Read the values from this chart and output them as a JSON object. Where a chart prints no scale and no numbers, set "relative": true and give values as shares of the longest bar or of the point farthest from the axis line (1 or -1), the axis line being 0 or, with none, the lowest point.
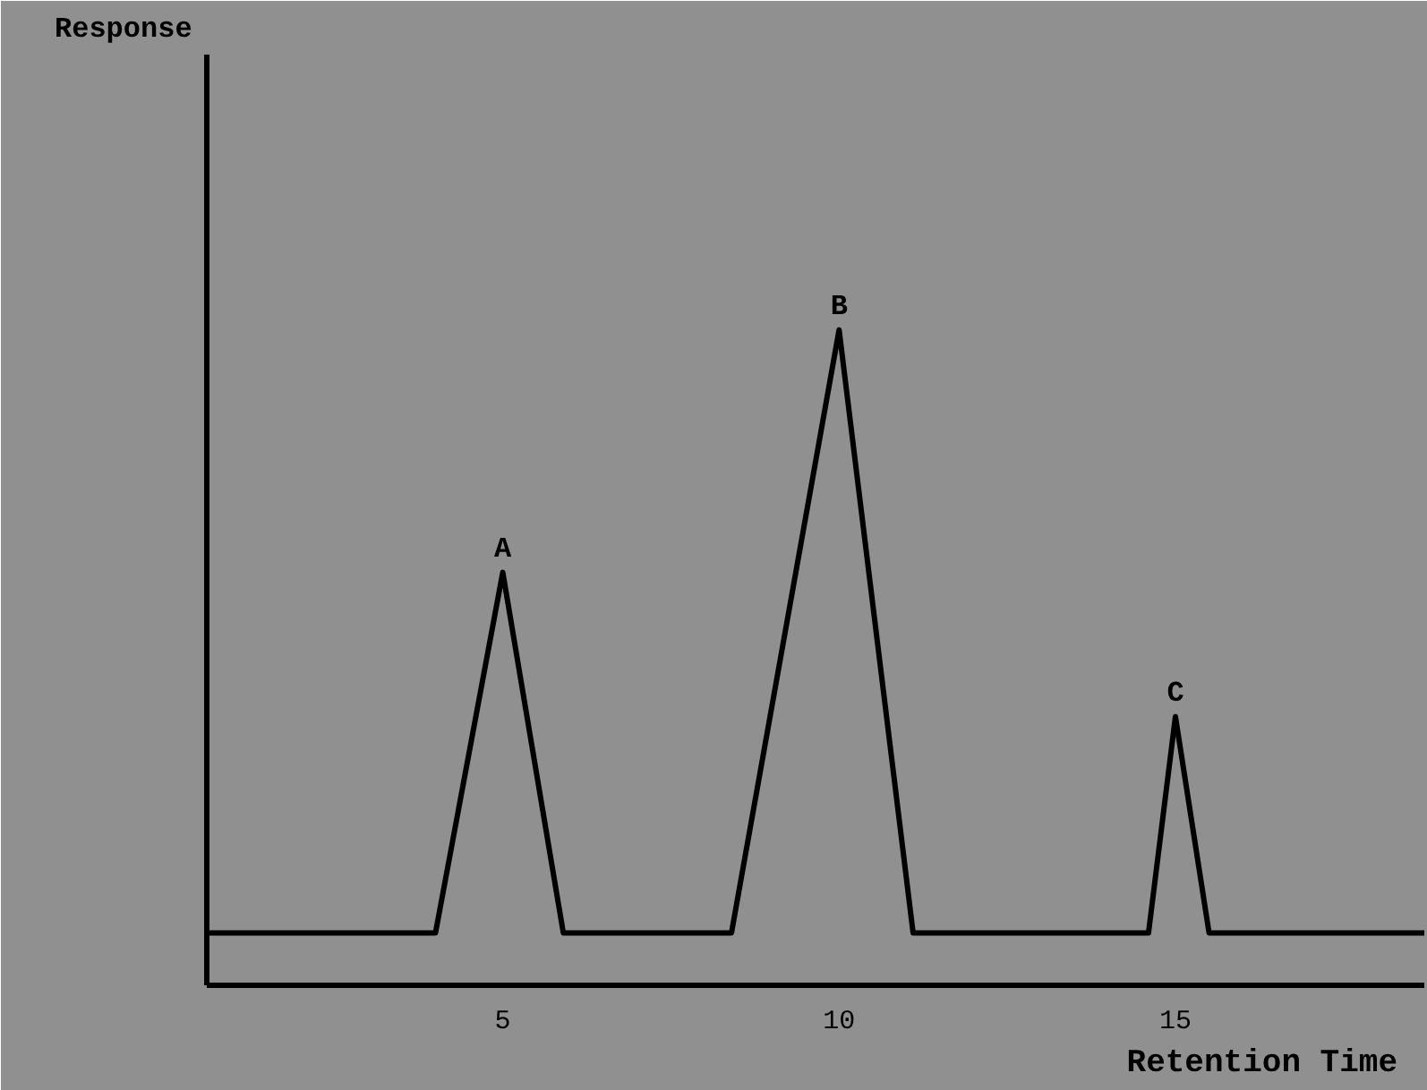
{
  "chart_data": {
    "type": "line",
    "relative": true,
    "xlabel": "Retention Time",
    "x": [
      0.6,
      4.0,
      5.0,
      5.9,
      8.4,
      10.0,
      11.1,
      14.6,
      15.0,
      15.5,
      18.7
    ],
    "series": [
      {
        "color": "#000000",
        "values": [
          0.08,
          0.08,
          0.63,
          0.08,
          0.08,
          1.0,
          0.08,
          0.08,
          0.41,
          0.08,
          0.08
        ]
      }
    ],
    "xlim": [
      0.6,
      18.7
    ],
    "xticks": [
      5,
      10,
      15
    ],
    "grid": false,
    "marker": "none",
    "line_style": "solid",
    "annotations": [
      "Response",
      {
        "text": "A",
        "x": 5,
        "y": 0.63
      },
      {
        "text": "B",
        "x": 10,
        "y": 1.0
      },
      {
        "text": "C",
        "x": 15,
        "y": 0.41
      }
    ]
  }
}
